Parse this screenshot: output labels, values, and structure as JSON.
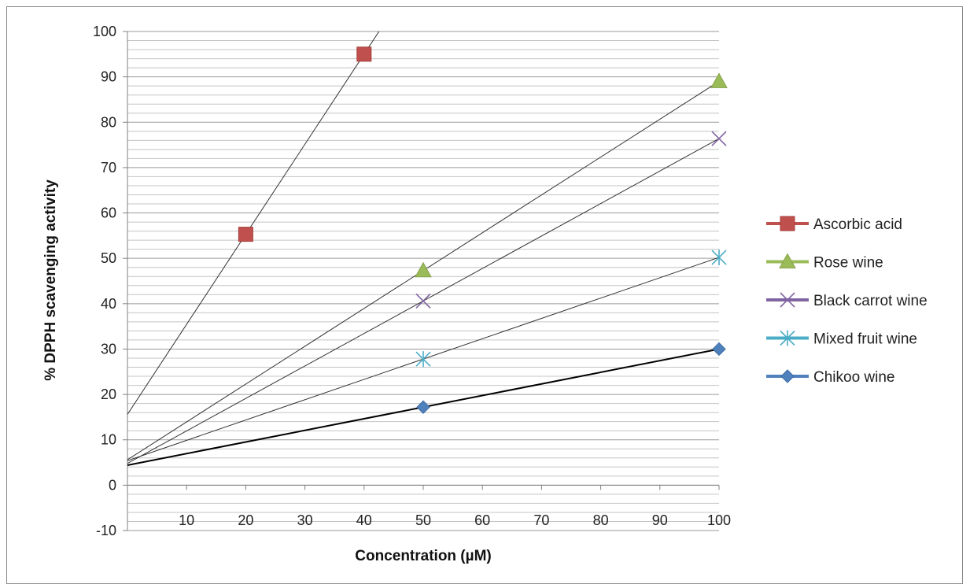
{
  "chart_data": {
    "type": "scatter",
    "xlabel": "Concentration (µM)",
    "ylabel": "% DPPH scavenging activity",
    "xlim": [
      0,
      100
    ],
    "ylim": [
      -10,
      100
    ],
    "x_ticks": [
      10,
      20,
      30,
      40,
      50,
      60,
      70,
      80,
      90,
      100
    ],
    "y_ticks": [
      -10,
      0,
      10,
      20,
      30,
      40,
      50,
      60,
      70,
      80,
      90,
      100
    ],
    "grid": "horizontal",
    "legend_position": "right",
    "series": [
      {
        "name": "Ascorbic acid",
        "color": "#c0504d",
        "marker": "square",
        "x": [
          20,
          40
        ],
        "y": [
          55.3,
          95
        ],
        "trendline": {
          "intercept": 15.6,
          "slope": 1.985
        }
      },
      {
        "name": "Rose wine",
        "color": "#9bbb59",
        "marker": "triangle",
        "x": [
          50,
          100
        ],
        "y": [
          47.3,
          89
        ],
        "trendline": {
          "intercept": 5.6,
          "slope": 0.834
        }
      },
      {
        "name": "Black carrot wine",
        "color": "#8064a2",
        "marker": "x",
        "x": [
          50,
          100
        ],
        "y": [
          40.6,
          76.4
        ],
        "trendline": {
          "intercept": 4.8,
          "slope": 0.716
        }
      },
      {
        "name": "Mixed fruit wine",
        "color": "#4bacc6",
        "marker": "star",
        "x": [
          50,
          100
        ],
        "y": [
          27.8,
          50.2
        ],
        "trendline": {
          "intercept": 5.4,
          "slope": 0.448
        }
      },
      {
        "name": "Chikoo wine",
        "color": "#4f81bd",
        "marker": "diamond",
        "x": [
          50,
          100
        ],
        "y": [
          17.2,
          30
        ],
        "trendline": {
          "intercept": 4.4,
          "slope": 0.256
        }
      }
    ]
  }
}
